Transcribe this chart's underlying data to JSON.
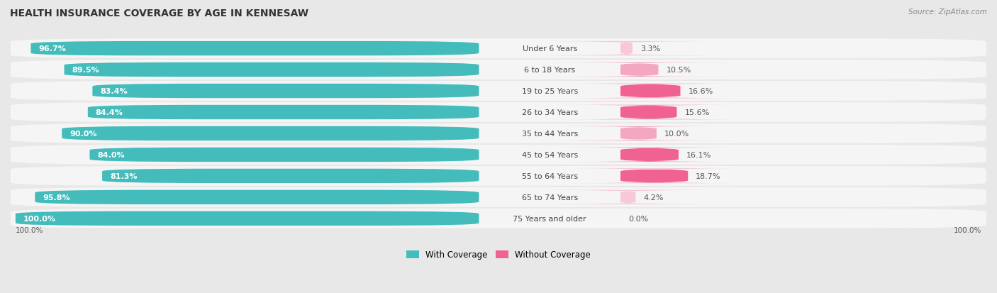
{
  "title": "HEALTH INSURANCE COVERAGE BY AGE IN KENNESAW",
  "source": "Source: ZipAtlas.com",
  "categories": [
    "Under 6 Years",
    "6 to 18 Years",
    "19 to 25 Years",
    "26 to 34 Years",
    "35 to 44 Years",
    "45 to 54 Years",
    "55 to 64 Years",
    "65 to 74 Years",
    "75 Years and older"
  ],
  "with_coverage": [
    96.7,
    89.5,
    83.4,
    84.4,
    90.0,
    84.0,
    81.3,
    95.8,
    100.0
  ],
  "without_coverage": [
    3.3,
    10.5,
    16.6,
    15.6,
    10.0,
    16.1,
    18.7,
    4.2,
    0.0
  ],
  "color_with": "#45BCBC",
  "color_without_strong": "#F06292",
  "color_without_light": "#F4A7C0",
  "color_without_vlight": "#F8C8D8",
  "background_color": "#e8e8e8",
  "row_bg_color": "#f5f5f5",
  "title_fontsize": 10,
  "label_fontsize": 8,
  "value_fontsize": 8,
  "legend_label_with": "With Coverage",
  "legend_label_without": "Without Coverage"
}
